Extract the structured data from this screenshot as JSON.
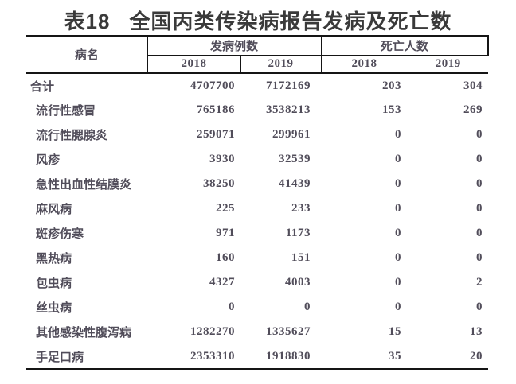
{
  "title": {
    "prefix": "表18",
    "text": "全国丙类传染病报告发病及死亡数"
  },
  "colors": {
    "background": "#ffffff",
    "title_text": "#3a3a3a",
    "body_text": "#514d5a",
    "border": "#151515"
  },
  "table": {
    "header": {
      "disease": "病名",
      "cases_group": "发病例数",
      "deaths_group": "死亡人数",
      "cases_years": [
        "2018",
        "2019"
      ],
      "deaths_years": [
        "2018",
        "2019"
      ]
    },
    "rows": [
      {
        "name": "合计",
        "total": true,
        "cases_2018": "4707700",
        "cases_2019": "7172169",
        "deaths_2018": "203",
        "deaths_2019": "304"
      },
      {
        "name": "流行性感冒",
        "cases_2018": "765186",
        "cases_2019": "3538213",
        "deaths_2018": "153",
        "deaths_2019": "269"
      },
      {
        "name": "流行性腮腺炎",
        "cases_2018": "259071",
        "cases_2019": "299961",
        "deaths_2018": "0",
        "deaths_2019": "0"
      },
      {
        "name": "风疹",
        "cases_2018": "3930",
        "cases_2019": "32539",
        "deaths_2018": "0",
        "deaths_2019": "0"
      },
      {
        "name": "急性出血性结膜炎",
        "cases_2018": "38250",
        "cases_2019": "41439",
        "deaths_2018": "0",
        "deaths_2019": "0"
      },
      {
        "name": "麻风病",
        "cases_2018": "225",
        "cases_2019": "233",
        "deaths_2018": "0",
        "deaths_2019": "0"
      },
      {
        "name": "斑疹伤寒",
        "cases_2018": "971",
        "cases_2019": "1173",
        "deaths_2018": "0",
        "deaths_2019": "0"
      },
      {
        "name": "黑热病",
        "cases_2018": "160",
        "cases_2019": "151",
        "deaths_2018": "0",
        "deaths_2019": "0"
      },
      {
        "name": "包虫病",
        "cases_2018": "4327",
        "cases_2019": "4003",
        "deaths_2018": "0",
        "deaths_2019": "2"
      },
      {
        "name": "丝虫病",
        "cases_2018": "0",
        "cases_2019": "0",
        "deaths_2018": "0",
        "deaths_2019": "0"
      },
      {
        "name": "其他感染性腹泻病",
        "cases_2018": "1282270",
        "cases_2019": "1335627",
        "deaths_2018": "15",
        "deaths_2019": "13"
      },
      {
        "name": "手足口病",
        "cases_2018": "2353310",
        "cases_2019": "1918830",
        "deaths_2018": "35",
        "deaths_2019": "20"
      }
    ]
  }
}
